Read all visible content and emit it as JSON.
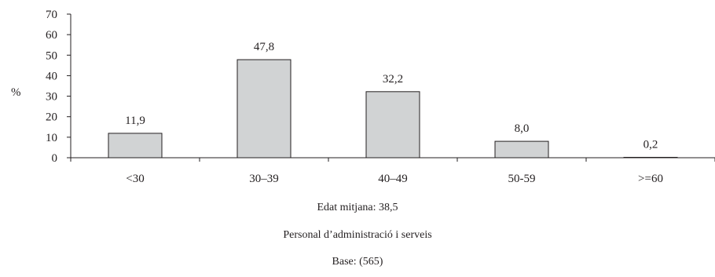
{
  "chart_data": {
    "type": "bar",
    "categories": [
      "<30",
      "30–39",
      "40–49",
      "50-59",
      ">=60"
    ],
    "values": [
      11.9,
      47.8,
      32.2,
      8.0,
      0.2
    ],
    "data_labels": [
      "11,9",
      "47,8",
      "32,2",
      "8,0",
      "0,2"
    ],
    "ylabel": "%",
    "ylim": [
      0,
      70
    ],
    "yticks": [
      0,
      10,
      20,
      30,
      40,
      50,
      60,
      70
    ],
    "grid": false,
    "legend": "none",
    "bar_fill": "#d1d3d4",
    "bar_stroke": "#231f20"
  },
  "notes": {
    "average_age": "Edat mitjana: 38,5",
    "group": "Personal d’administració i serveis",
    "base": "Base: (565)"
  }
}
